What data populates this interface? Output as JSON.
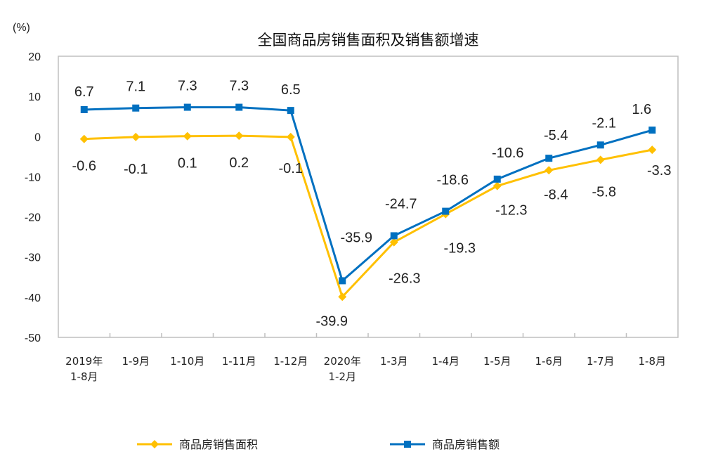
{
  "chart_data": {
    "type": "line",
    "title": "全国商品房销售面积及销售额增速",
    "ylabel": "(%)",
    "ylim": [
      -50,
      20
    ],
    "yticks": [
      20,
      10,
      0,
      -10,
      -20,
      -30,
      -40,
      -50
    ],
    "grid": false,
    "legend_position": "bottom",
    "categories": [
      [
        "2019年",
        "1-8月"
      ],
      [
        "1-9月"
      ],
      [
        "1-10月"
      ],
      [
        "1-11月"
      ],
      [
        "1-12月"
      ],
      [
        "2020年",
        "1-2月"
      ],
      [
        "1-3月"
      ],
      [
        "1-4月"
      ],
      [
        "1-5月"
      ],
      [
        "1-6月"
      ],
      [
        "1-7月"
      ],
      [
        "1-8月"
      ]
    ],
    "series": [
      {
        "name": "商品房销售面积",
        "color": "#FFC000",
        "marker": "diamond",
        "values": [
          -0.6,
          -0.1,
          0.1,
          0.2,
          -0.1,
          -39.9,
          -26.3,
          -19.3,
          -12.3,
          -8.4,
          -5.8,
          -3.3
        ]
      },
      {
        "name": "商品房销售额",
        "color": "#0070C0",
        "marker": "square",
        "values": [
          6.7,
          7.1,
          7.3,
          7.3,
          6.5,
          -35.9,
          -24.7,
          -18.6,
          -10.6,
          -5.4,
          -2.1,
          1.6
        ]
      }
    ]
  }
}
